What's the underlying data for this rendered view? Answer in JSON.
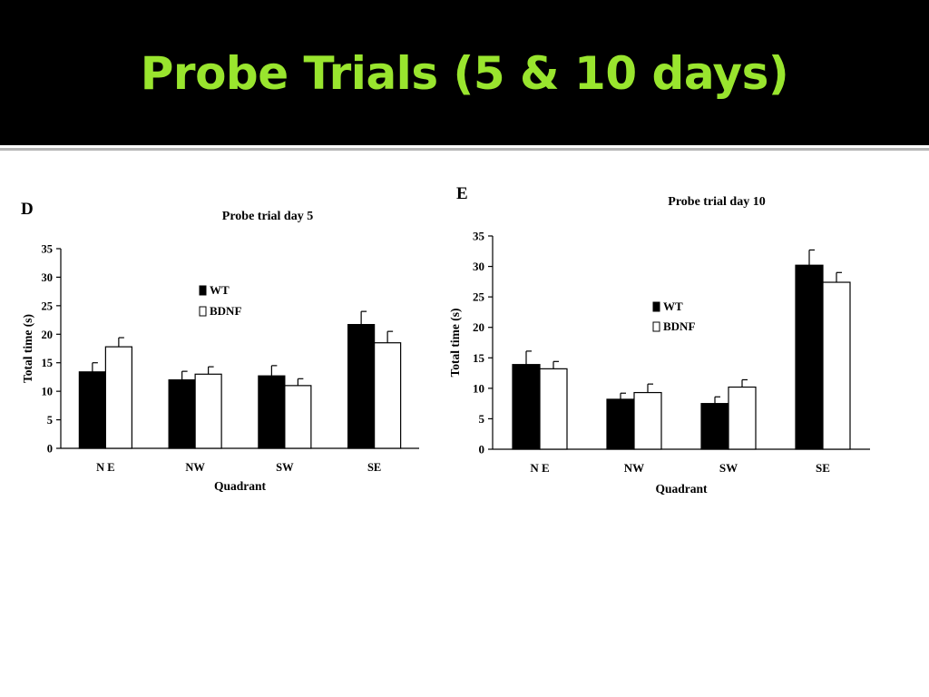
{
  "slide": {
    "title": "Probe Trials (5 & 10 days)"
  },
  "colors": {
    "header_bg": "#000000",
    "title": "#99e52e",
    "wt_fill": "#000000",
    "bdnf_fill": "#ffffff"
  },
  "chart_data": [
    {
      "panel": "D",
      "type": "bar",
      "title": "Probe trial day 5",
      "xlabel": "Quadrant",
      "ylabel": "Total time (s)",
      "categories": [
        "N E",
        "NW",
        "SW",
        "SE"
      ],
      "ylim": [
        0,
        35
      ],
      "yticks": [
        0,
        5,
        10,
        15,
        20,
        25,
        30,
        35
      ],
      "legend": "upper-center",
      "series": [
        {
          "name": "WT",
          "values": [
            13.4,
            12.0,
            12.7,
            21.7
          ],
          "errors": [
            1.6,
            1.5,
            1.8,
            2.3
          ]
        },
        {
          "name": "BDNF",
          "values": [
            17.8,
            13.0,
            11.0,
            18.5
          ],
          "errors": [
            1.6,
            1.3,
            1.2,
            2.0
          ]
        }
      ]
    },
    {
      "panel": "E",
      "type": "bar",
      "title": "Probe trial day 10",
      "xlabel": "Quadrant",
      "ylabel": "Total time (s)",
      "categories": [
        "N E",
        "NW",
        "SW",
        "SE"
      ],
      "ylim": [
        0,
        35
      ],
      "yticks": [
        0,
        5,
        10,
        15,
        20,
        25,
        30,
        35
      ],
      "legend": "center-left",
      "series": [
        {
          "name": "WT",
          "values": [
            13.9,
            8.2,
            7.5,
            30.2
          ],
          "errors": [
            2.2,
            1.0,
            1.1,
            2.5
          ]
        },
        {
          "name": "BDNF",
          "values": [
            13.2,
            9.3,
            10.2,
            27.4
          ],
          "errors": [
            1.2,
            1.4,
            1.2,
            1.6
          ]
        }
      ]
    }
  ]
}
